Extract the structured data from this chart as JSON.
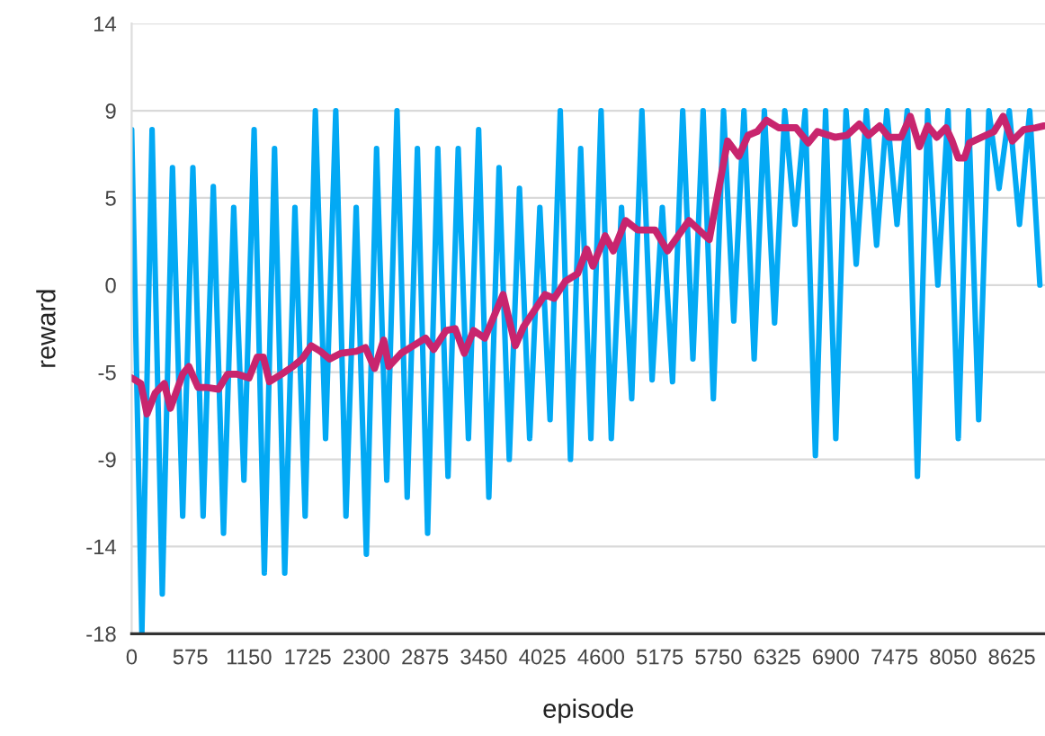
{
  "chart_data": {
    "type": "line",
    "xlabel": "episode",
    "ylabel": "reward",
    "xlim": [
      0,
      8950
    ],
    "ylim": [
      -18.4,
      13.8
    ],
    "xticks": [
      0,
      575,
      1150,
      1725,
      2300,
      2875,
      3450,
      4025,
      4600,
      5175,
      5750,
      6325,
      6900,
      7475,
      8050,
      8625
    ],
    "yticks": [
      {
        "value": -18.4,
        "label": "-18"
      },
      {
        "value": -13.8,
        "label": "-14"
      },
      {
        "value": -9.2,
        "label": "-9"
      },
      {
        "value": -4.6,
        "label": "-5"
      },
      0,
      {
        "value": 4.6,
        "label": "5"
      },
      {
        "value": 9.2,
        "label": "9"
      },
      {
        "value": 13.8,
        "label": "14"
      }
    ],
    "grid": "y",
    "legend": false,
    "marker": "none",
    "line_style": "solid",
    "series": [
      {
        "color": "#03a9f4",
        "x": [
          0,
          100,
          200,
          300,
          400,
          500,
          600,
          700,
          800,
          900,
          1000,
          1100,
          1200,
          1300,
          1400,
          1500,
          1600,
          1700,
          1800,
          1900,
          2000,
          2100,
          2200,
          2300,
          2400,
          2500,
          2600,
          2700,
          2800,
          2900,
          3000,
          3100,
          3200,
          3300,
          3400,
          3500,
          3600,
          3700,
          3800,
          3900,
          4000,
          4100,
          4200,
          4300,
          4400,
          4500,
          4600,
          4700,
          4800,
          4900,
          5000,
          5100,
          5200,
          5300,
          5400,
          5500,
          5600,
          5700,
          5800,
          5900,
          6000,
          6100,
          6200,
          6300,
          6400,
          6500,
          6600,
          6700,
          6800,
          6900,
          7000,
          7100,
          7200,
          7300,
          7400,
          7500,
          7600,
          7700,
          7800,
          7900,
          8000,
          8100,
          8200,
          8300,
          8400,
          8500,
          8600,
          8700,
          8800,
          8900
        ],
        "values": [
          8.2,
          -18.4,
          8.2,
          -16.3,
          6.2,
          -12.2,
          6.2,
          -12.2,
          5.2,
          -13.1,
          4.1,
          -10.3,
          8.2,
          -15.2,
          7.2,
          -15.2,
          4.1,
          -12.2,
          9.2,
          -8.1,
          9.2,
          -12.2,
          4.1,
          -14.2,
          7.2,
          -10.3,
          9.2,
          -11.2,
          7.2,
          -13.1,
          7.2,
          -10.1,
          7.2,
          -8.1,
          8.2,
          -11.2,
          6.2,
          -9.2,
          5.1,
          -8.1,
          4.1,
          -7.1,
          9.2,
          -9.2,
          7.2,
          -8.1,
          9.2,
          -8.1,
          4.1,
          -6.0,
          9.2,
          -5.0,
          4.1,
          -5.1,
          9.2,
          -3.9,
          9.2,
          -6.0,
          9.2,
          -1.9,
          9.2,
          -3.9,
          9.2,
          -2.0,
          9.2,
          3.2,
          9.2,
          -9.0,
          9.2,
          -8.1,
          9.2,
          1.1,
          9.2,
          2.1,
          9.2,
          3.2,
          9.2,
          -10.1,
          9.2,
          0.0,
          9.2,
          -8.1,
          9.2,
          -7.1,
          9.2,
          5.1,
          9.2,
          3.2,
          9.2,
          0.0
        ]
      },
      {
        "color": "#c8256e",
        "x": [
          0,
          90,
          150,
          230,
          320,
          380,
          500,
          560,
          650,
          730,
          850,
          940,
          1030,
          1150,
          1230,
          1290,
          1350,
          1470,
          1580,
          1670,
          1760,
          1850,
          1940,
          2050,
          2200,
          2290,
          2380,
          2470,
          2520,
          2640,
          2760,
          2880,
          2960,
          3080,
          3170,
          3260,
          3350,
          3460,
          3640,
          3760,
          3840,
          4050,
          4140,
          4250,
          4370,
          4460,
          4520,
          4640,
          4720,
          4840,
          4960,
          5130,
          5250,
          5460,
          5660,
          5840,
          5950,
          6040,
          6130,
          6220,
          6340,
          6510,
          6630,
          6720,
          6890,
          7010,
          7130,
          7220,
          7330,
          7420,
          7540,
          7630,
          7720,
          7800,
          7890,
          7980,
          8040,
          8100,
          8160,
          8210,
          8330,
          8450,
          8540,
          8630,
          8740,
          8860,
          8940
        ],
        "values": [
          -4.9,
          -5.2,
          -6.8,
          -5.7,
          -5.2,
          -6.5,
          -4.7,
          -4.3,
          -5.4,
          -5.4,
          -5.5,
          -4.7,
          -4.7,
          -4.9,
          -3.8,
          -3.8,
          -5.1,
          -4.7,
          -4.3,
          -3.9,
          -3.2,
          -3.5,
          -3.9,
          -3.6,
          -3.5,
          -3.3,
          -4.4,
          -2.9,
          -4.3,
          -3.6,
          -3.2,
          -2.8,
          -3.4,
          -2.4,
          -2.3,
          -3.6,
          -2.4,
          -2.8,
          -0.5,
          -3.2,
          -2.2,
          -0.5,
          -0.7,
          0.2,
          0.6,
          1.9,
          1.0,
          2.6,
          1.8,
          3.4,
          2.9,
          2.9,
          1.8,
          3.4,
          2.4,
          7.6,
          6.8,
          7.9,
          8.1,
          8.7,
          8.3,
          8.3,
          7.5,
          8.1,
          7.8,
          7.9,
          8.5,
          7.9,
          8.4,
          7.8,
          7.8,
          8.9,
          7.3,
          8.4,
          7.8,
          8.3,
          7.6,
          6.7,
          6.7,
          7.5,
          7.8,
          8.1,
          8.9,
          7.6,
          8.2,
          8.3,
          8.4
        ]
      }
    ]
  }
}
